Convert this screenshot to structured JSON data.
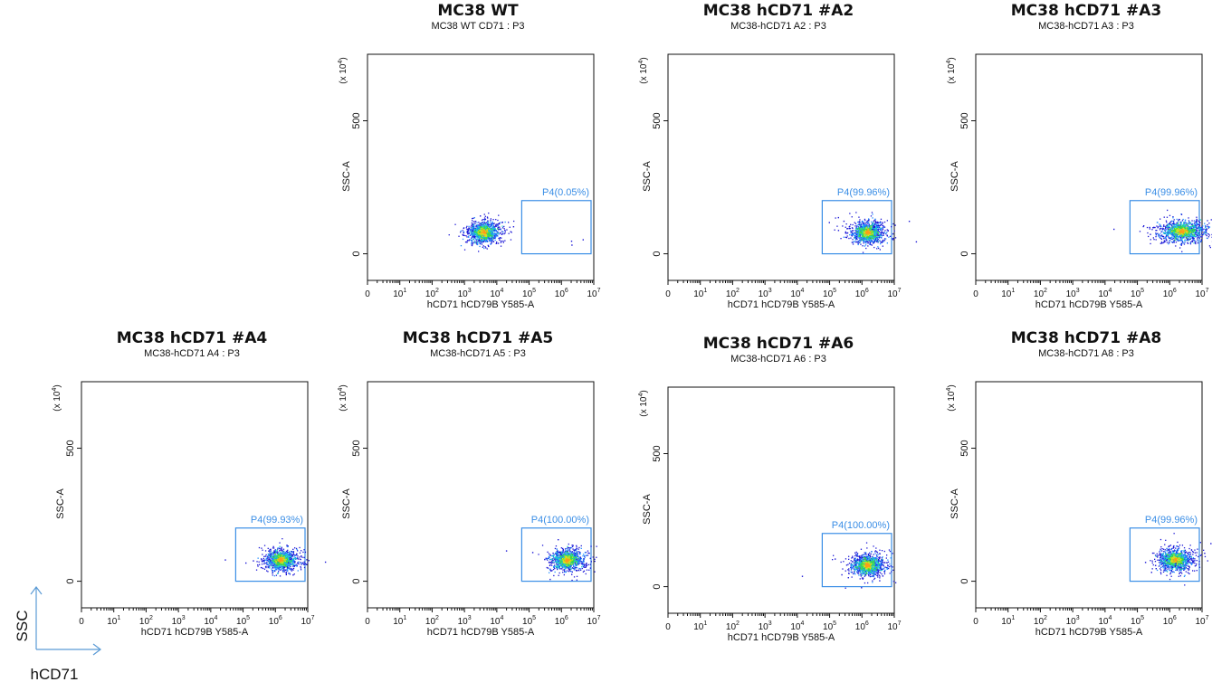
{
  "chart_data": [
    {
      "type": "scatter",
      "title": "MC38 WT",
      "subtitle": "MC38 WT CD71 : P3",
      "xlabel": "hCD71 hCD79B Y585-A",
      "ylabel": "SSC-A",
      "y_multiplier": "(x 10^4)",
      "xscale": "log",
      "xticks": [
        "0",
        "10^1",
        "10^2",
        "10^3",
        "10^4",
        "10^5",
        "10^6",
        "10^7"
      ],
      "yticks": [
        "0",
        "500"
      ],
      "ylim": [
        -100,
        750
      ],
      "gate": {
        "label": "P4(0.05%)",
        "x_range": [
          59000.0,
          10000000.0
        ],
        "y_range": [
          0,
          200
        ]
      },
      "population_center": {
        "x": 4000,
        "y": 80
      }
    },
    {
      "type": "scatter",
      "title": "MC38 hCD71 #A2",
      "subtitle": "MC38-hCD71 A2 : P3",
      "xlabel": "hCD71 hCD79B Y585-A",
      "ylabel": "SSC-A",
      "y_multiplier": "(x 10^4)",
      "xscale": "log",
      "xticks": [
        "0",
        "10^1",
        "10^2",
        "10^3",
        "10^4",
        "10^5",
        "10^6",
        "10^7"
      ],
      "yticks": [
        "0",
        "500"
      ],
      "ylim": [
        -100,
        750
      ],
      "gate": {
        "label": "P4(99.96%)",
        "x_range": [
          59000.0,
          10000000.0
        ],
        "y_range": [
          0,
          200
        ]
      },
      "population_center": {
        "x": 1500000,
        "y": 80
      }
    },
    {
      "type": "scatter",
      "title": "MC38 hCD71 #A3",
      "subtitle": "MC38-hCD71 A3 : P3",
      "xlabel": "hCD71 hCD79B Y585-A",
      "ylabel": "SSC-A",
      "y_multiplier": "(x 10^4)",
      "xscale": "log",
      "xticks": [
        "0",
        "10^1",
        "10^2",
        "10^3",
        "10^4",
        "10^5",
        "10^6",
        "10^7"
      ],
      "yticks": [
        "0",
        "500"
      ],
      "ylim": [
        -100,
        750
      ],
      "gate": {
        "label": "P4(99.96%)",
        "x_range": [
          59000.0,
          10000000.0
        ],
        "y_range": [
          0,
          200
        ]
      },
      "population_center": {
        "x": 2500000,
        "y": 85
      }
    },
    {
      "type": "scatter",
      "title": "MC38 hCD71 #A4",
      "subtitle": "MC38-hCD71 A4 : P3",
      "xlabel": "hCD71 hCD79B Y585-A",
      "ylabel": "SSC-A",
      "y_multiplier": "(x 10^4)",
      "xscale": "log",
      "xticks": [
        "0",
        "10^1",
        "10^2",
        "10^3",
        "10^4",
        "10^5",
        "10^6",
        "10^7"
      ],
      "yticks": [
        "0",
        "500"
      ],
      "ylim": [
        -100,
        750
      ],
      "gate": {
        "label": "P4(99.93%)",
        "x_range": [
          59000.0,
          10000000.0
        ],
        "y_range": [
          0,
          200
        ]
      },
      "population_center": {
        "x": 1500000,
        "y": 80
      }
    },
    {
      "type": "scatter",
      "title": "MC38 hCD71 #A5",
      "subtitle": "MC38-hCD71 A5 : P3",
      "xlabel": "hCD71 hCD79B Y585-A",
      "ylabel": "SSC-A",
      "y_multiplier": "(x 10^4)",
      "xscale": "log",
      "xticks": [
        "0",
        "10^1",
        "10^2",
        "10^3",
        "10^4",
        "10^5",
        "10^6",
        "10^7"
      ],
      "yticks": [
        "0",
        "500"
      ],
      "ylim": [
        -100,
        750
      ],
      "gate": {
        "label": "P4(100.00%)",
        "x_range": [
          59000.0,
          10000000.0
        ],
        "y_range": [
          0,
          200
        ]
      },
      "population_center": {
        "x": 1500000,
        "y": 80
      }
    },
    {
      "type": "scatter",
      "title": "MC38 hCD71 #A6",
      "subtitle": "MC38-hCD71 A6 : P3",
      "xlabel": "hCD71 hCD79B Y585-A",
      "ylabel": "SSC-A",
      "y_multiplier": "(x 10^4)",
      "xscale": "log",
      "xticks": [
        "0",
        "10^1",
        "10^2",
        "10^3",
        "10^4",
        "10^5",
        "10^6",
        "10^7"
      ],
      "yticks": [
        "0",
        "500"
      ],
      "ylim": [
        -100,
        750
      ],
      "gate": {
        "label": "P4(100.00%)",
        "x_range": [
          59000.0,
          10000000.0
        ],
        "y_range": [
          0,
          200
        ]
      },
      "population_center": {
        "x": 1500000,
        "y": 80
      }
    },
    {
      "type": "scatter",
      "title": "MC38 hCD71 #A8",
      "subtitle": "MC38-hCD71 A8 : P3",
      "xlabel": "hCD71 hCD79B Y585-A",
      "ylabel": "SSC-A",
      "y_multiplier": "(x 10^4)",
      "xscale": "log",
      "xticks": [
        "0",
        "10^1",
        "10^2",
        "10^3",
        "10^4",
        "10^5",
        "10^6",
        "10^7"
      ],
      "yticks": [
        "0",
        "500"
      ],
      "ylim": [
        -100,
        750
      ],
      "gate": {
        "label": "P4(99.96%)",
        "x_range": [
          59000.0,
          10000000.0
        ],
        "y_range": [
          0,
          200
        ]
      },
      "population_center": {
        "x": 1500000,
        "y": 80
      }
    }
  ],
  "legend": {
    "y_axis": "SSC",
    "x_axis": "hCD71"
  },
  "colors": {
    "gate": "#3a8ee6",
    "axis": "#111111",
    "density": [
      "#1b17d6",
      "#1f8cff",
      "#20d2c8",
      "#3fdb3a",
      "#d8e020",
      "#ff9a1a"
    ]
  }
}
